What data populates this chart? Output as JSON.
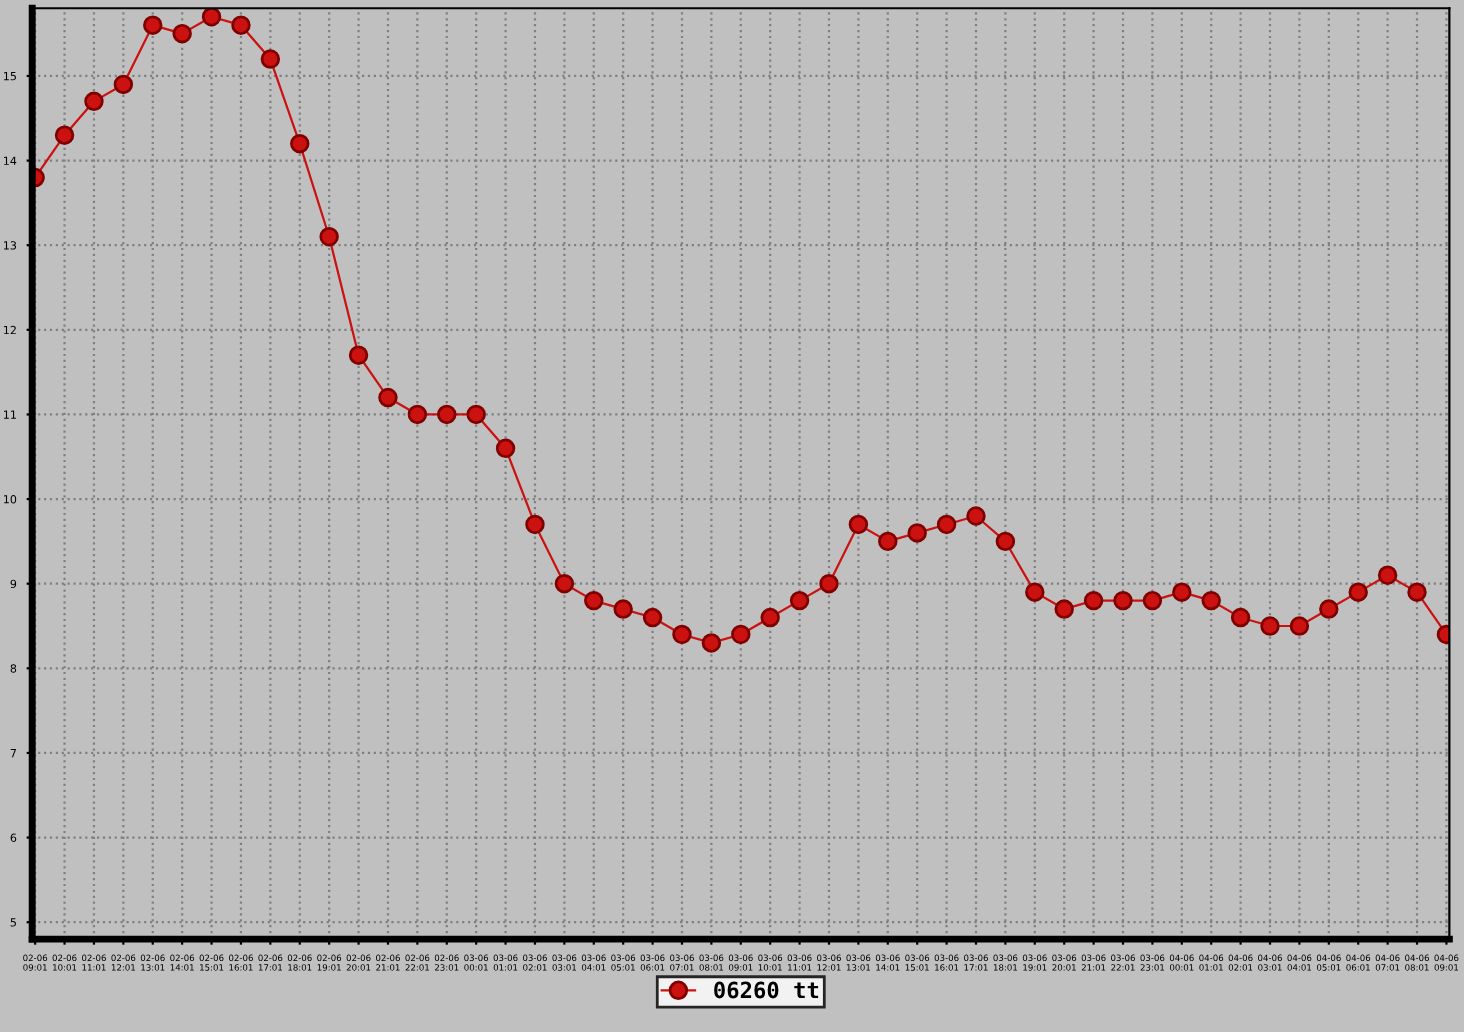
{
  "chart_data": {
    "type": "line",
    "categories": [
      "02-06\n09:01",
      "02-06\n10:01",
      "02-06\n11:01",
      "02-06\n12:01",
      "02-06\n13:01",
      "02-06\n14:01",
      "02-06\n15:01",
      "02-06\n16:01",
      "02-06\n17:01",
      "02-06\n18:01",
      "02-06\n19:01",
      "02-06\n20:01",
      "02-06\n21:01",
      "02-06\n22:01",
      "02-06\n23:01",
      "03-06\n00:01",
      "03-06\n01:01",
      "03-06\n02:01",
      "03-06\n03:01",
      "03-06\n04:01",
      "03-06\n05:01",
      "03-06\n06:01",
      "03-06\n07:01",
      "03-06\n08:01",
      "03-06\n09:01",
      "03-06\n10:01",
      "03-06\n11:01",
      "03-06\n12:01",
      "03-06\n13:01",
      "03-06\n14:01",
      "03-06\n15:01",
      "03-06\n16:01",
      "03-06\n17:01",
      "03-06\n18:01",
      "03-06\n19:01",
      "03-06\n20:01",
      "03-06\n21:01",
      "03-06\n22:01",
      "03-06\n23:01",
      "04-06\n00:01",
      "04-06\n01:01",
      "04-06\n02:01",
      "04-06\n03:01",
      "04-06\n04:01",
      "04-06\n05:01",
      "04-06\n06:01",
      "04-06\n07:01",
      "04-06\n08:01",
      "04-06\n09:01"
    ],
    "series": [
      {
        "name": "06260 tt",
        "color": "#cc1111",
        "values": [
          13.8,
          14.3,
          14.7,
          14.9,
          15.6,
          15.5,
          15.7,
          15.6,
          15.2,
          14.2,
          13.1,
          11.7,
          11.2,
          11.0,
          11.0,
          11.0,
          10.6,
          9.7,
          9.0,
          8.8,
          8.7,
          8.6,
          8.4,
          8.3,
          8.4,
          8.6,
          8.8,
          9.0,
          9.7,
          9.5,
          9.6,
          9.7,
          9.8,
          9.5,
          8.9,
          8.7,
          8.8,
          8.8,
          8.8,
          8.9,
          8.8,
          8.6,
          8.5,
          8.5,
          8.7,
          8.9,
          9.1,
          8.9,
          8.4
        ]
      }
    ],
    "ylim": [
      4.8,
      15.8
    ],
    "yticks": [
      5,
      6,
      7,
      8,
      9,
      10,
      11,
      12,
      13,
      14,
      15
    ],
    "grid": true,
    "legend": "bottom",
    "marker": "circle",
    "line_style": "solid"
  }
}
